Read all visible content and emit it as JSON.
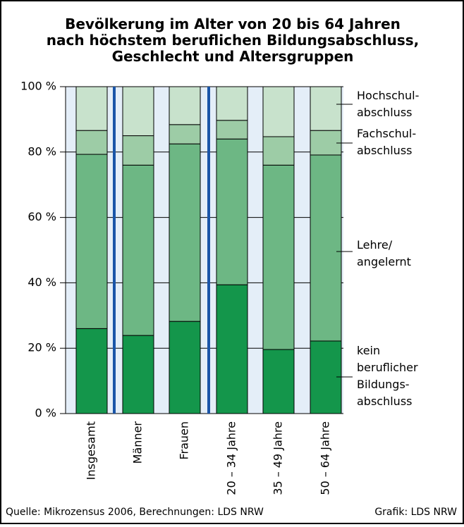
{
  "chart_data": {
    "type": "stacked_bar",
    "title": "Bevölkerung im Alter von 20 bis 64 Jahren\nnach höchstem beruflichen Bildungsabschluss,\nGeschlecht und Altersgruppen",
    "categories": [
      "Insgesamt",
      "Männer",
      "Frauen",
      "20 – 34 Jahre",
      "35 – 49 Jahre",
      "50 – 64 Jahre"
    ],
    "series": [
      {
        "name": "kein\nberuflicher\nBildungs-\nabschluss",
        "color": "#14964b",
        "values": [
          26.0,
          23.9,
          28.2,
          39.4,
          19.6,
          22.2
        ]
      },
      {
        "name": "Lehre/\nangelernt",
        "color": "#6db784",
        "values": [
          53.3,
          52.1,
          54.3,
          44.6,
          56.4,
          56.9
        ]
      },
      {
        "name": "Fachschul-\nabschluss",
        "color": "#9dcca6",
        "values": [
          7.3,
          9.0,
          5.9,
          5.7,
          8.7,
          7.5
        ]
      },
      {
        "name": "Hochschul-\nabschluss",
        "color": "#c8e2cc",
        "values": [
          13.4,
          15.0,
          11.6,
          10.3,
          15.3,
          13.4
        ]
      }
    ],
    "ylim": [
      0,
      100
    ],
    "yticks": [
      {
        "value": 0,
        "label": "0 %"
      },
      {
        "value": 20,
        "label": "20 %"
      },
      {
        "value": 40,
        "label": "40 %"
      },
      {
        "value": 60,
        "label": "60 %"
      },
      {
        "value": 80,
        "label": "80 %"
      },
      {
        "value": 100,
        "label": "100 %"
      }
    ],
    "grid": true,
    "source": "Quelle: Mikrozensus 2006, Berechnungen: LDS NRW",
    "credit": "Grafik: LDS NRW"
  }
}
